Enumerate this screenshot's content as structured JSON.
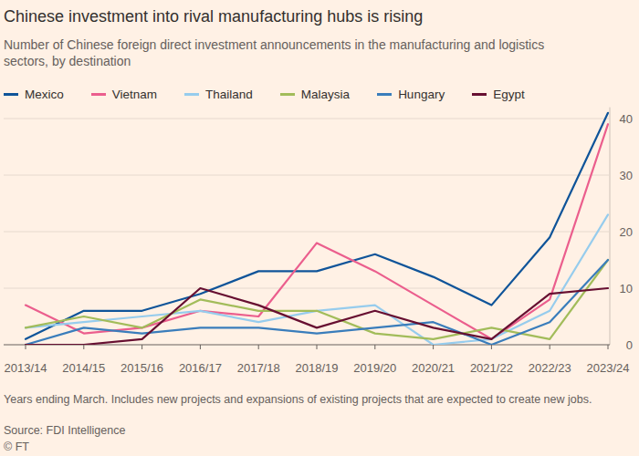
{
  "chart_data": {
    "type": "line",
    "title": "Chinese investment into rival manufacturing hubs is rising",
    "subtitle": "Number of Chinese foreign direct investment announcements in the manufacturing and logistics sectors, by destination",
    "note": "Years ending March. Includes new projects and expansions of existing projects that are expected to create new jobs.",
    "source": "Source: FDI Intelligence",
    "credit": "© FT",
    "categories": [
      "2013/14",
      "2014/15",
      "2015/16",
      "2016/17",
      "2017/18",
      "2018/19",
      "2019/20",
      "2020/21",
      "2021/22",
      "2022/23",
      "2023/24"
    ],
    "series": [
      {
        "name": "Mexico",
        "color": "#0f5499",
        "values": [
          1,
          6,
          6,
          9,
          13,
          13,
          16,
          12,
          7,
          19,
          41
        ]
      },
      {
        "name": "Vietnam",
        "color": "#eb5e8d",
        "values": [
          7,
          2,
          3,
          6,
          5,
          18,
          13,
          7,
          1,
          8,
          39
        ]
      },
      {
        "name": "Thailand",
        "color": "#96cced",
        "values": [
          3,
          4,
          5,
          6,
          4,
          6,
          7,
          0,
          1,
          6,
          23
        ]
      },
      {
        "name": "Malaysia",
        "color": "#a2bc5a",
        "values": [
          3,
          5,
          3,
          8,
          6,
          6,
          2,
          1,
          3,
          1,
          15
        ]
      },
      {
        "name": "Hungary",
        "color": "#3a7dbb",
        "values": [
          0,
          3,
          2,
          3,
          3,
          2,
          3,
          4,
          0,
          4,
          15
        ]
      },
      {
        "name": "Egypt",
        "color": "#670f31",
        "values": [
          0,
          0,
          1,
          10,
          7,
          3,
          6,
          3,
          1,
          9,
          10
        ]
      }
    ],
    "ylim": [
      0,
      42
    ],
    "yticks": [
      0,
      10,
      20,
      30,
      40
    ],
    "grid": true,
    "legend": "top"
  }
}
